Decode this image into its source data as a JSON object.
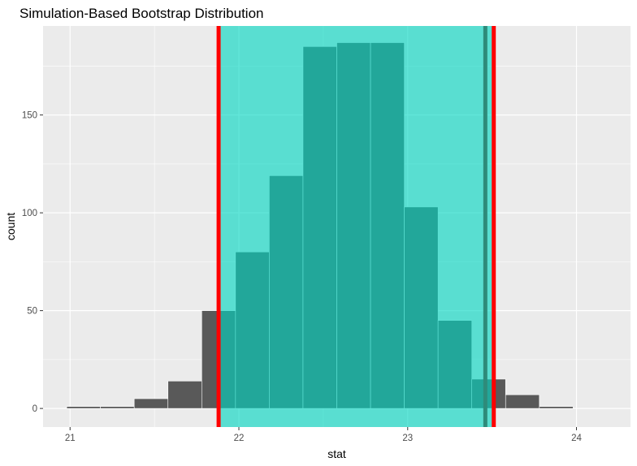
{
  "chart_data": {
    "type": "bar",
    "title": "Simulation-Based Bootstrap Distribution",
    "xlabel": "stat",
    "ylabel": "count",
    "xlim": [
      20.84,
      24.32
    ],
    "ylim": [
      -9.5,
      195.5
    ],
    "xticks": [
      21,
      22,
      23,
      24
    ],
    "yticks": [
      0,
      50,
      100,
      150
    ],
    "bins": [
      {
        "x0": 20.98,
        "x1": 21.18,
        "count": 1
      },
      {
        "x0": 21.18,
        "x1": 21.38,
        "count": 1
      },
      {
        "x0": 21.38,
        "x1": 21.58,
        "count": 5
      },
      {
        "x0": 21.58,
        "x1": 21.78,
        "count": 14
      },
      {
        "x0": 21.78,
        "x1": 21.98,
        "count": 50
      },
      {
        "x0": 21.98,
        "x1": 22.18,
        "count": 80
      },
      {
        "x0": 22.18,
        "x1": 22.38,
        "count": 119
      },
      {
        "x0": 22.38,
        "x1": 22.58,
        "count": 185
      },
      {
        "x0": 22.58,
        "x1": 22.78,
        "count": 187
      },
      {
        "x0": 22.78,
        "x1": 22.98,
        "count": 187
      },
      {
        "x0": 22.98,
        "x1": 23.18,
        "count": 103
      },
      {
        "x0": 23.18,
        "x1": 23.38,
        "count": 45
      },
      {
        "x0": 23.38,
        "x1": 23.58,
        "count": 15
      },
      {
        "x0": 23.58,
        "x1": 23.78,
        "count": 7
      },
      {
        "x0": 23.78,
        "x1": 23.98,
        "count": 1
      }
    ],
    "shaded_interval": {
      "lower": 21.88,
      "upper": 23.51
    },
    "interval_lines": [
      21.88,
      23.51
    ],
    "secondary_line": 23.46,
    "grid": true,
    "legend": "none",
    "colors": {
      "panel": "#EBEBEB",
      "grid": "#FFFFFF",
      "bar": "#595959",
      "bar_outline": "#FFFFFF",
      "shade": "#00D6C2",
      "interval_line": "#FF0000",
      "secondary_line": "#2E8B7A"
    }
  }
}
